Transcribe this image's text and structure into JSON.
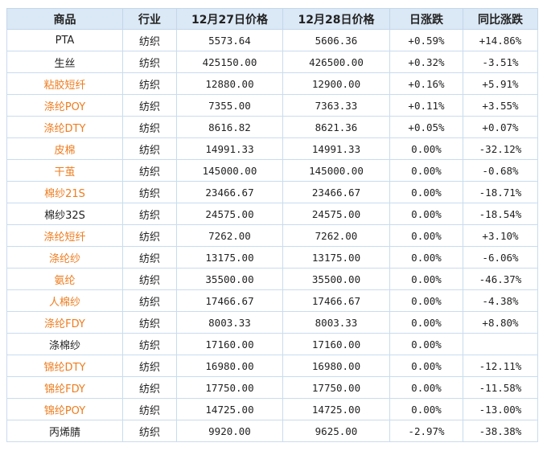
{
  "headers": [
    "商品",
    "行业",
    "12月27日价格",
    "12月28日价格",
    "日涨跌",
    "同比涨跌"
  ],
  "rows": [
    {
      "name": "PTA",
      "link": false,
      "industry": "纺织",
      "p1": "5573.64",
      "p2": "5606.36",
      "day": "+0.59%",
      "dayDir": "up",
      "yoy": "+14.86%",
      "yoyDir": "up"
    },
    {
      "name": "生丝",
      "link": false,
      "industry": "纺织",
      "p1": "425150.00",
      "p2": "426500.00",
      "day": "+0.32%",
      "dayDir": "up",
      "yoy": "-3.51%",
      "yoyDir": "down"
    },
    {
      "name": "粘胶短纤",
      "link": true,
      "industry": "纺织",
      "p1": "12880.00",
      "p2": "12900.00",
      "day": "+0.16%",
      "dayDir": "up",
      "yoy": "+5.91%",
      "yoyDir": "up"
    },
    {
      "name": "涤纶POY",
      "link": true,
      "industry": "纺织",
      "p1": "7355.00",
      "p2": "7363.33",
      "day": "+0.11%",
      "dayDir": "up",
      "yoy": "+3.55%",
      "yoyDir": "up"
    },
    {
      "name": "涤纶DTY",
      "link": true,
      "industry": "纺织",
      "p1": "8616.82",
      "p2": "8621.36",
      "day": "+0.05%",
      "dayDir": "up",
      "yoy": "+0.07%",
      "yoyDir": "up"
    },
    {
      "name": "皮棉",
      "link": true,
      "industry": "纺织",
      "p1": "14991.33",
      "p2": "14991.33",
      "day": "0.00%",
      "dayDir": "flat",
      "yoy": "-32.12%",
      "yoyDir": "down"
    },
    {
      "name": "干茧",
      "link": true,
      "industry": "纺织",
      "p1": "145000.00",
      "p2": "145000.00",
      "day": "0.00%",
      "dayDir": "flat",
      "yoy": "-0.68%",
      "yoyDir": "down"
    },
    {
      "name": "棉纱21S",
      "link": true,
      "industry": "纺织",
      "p1": "23466.67",
      "p2": "23466.67",
      "day": "0.00%",
      "dayDir": "flat",
      "yoy": "-18.71%",
      "yoyDir": "down"
    },
    {
      "name": "棉纱32S",
      "link": false,
      "industry": "纺织",
      "p1": "24575.00",
      "p2": "24575.00",
      "day": "0.00%",
      "dayDir": "flat",
      "yoy": "-18.54%",
      "yoyDir": "down"
    },
    {
      "name": "涤纶短纤",
      "link": true,
      "industry": "纺织",
      "p1": "7262.00",
      "p2": "7262.00",
      "day": "0.00%",
      "dayDir": "flat",
      "yoy": "+3.10%",
      "yoyDir": "up"
    },
    {
      "name": "涤纶纱",
      "link": true,
      "industry": "纺织",
      "p1": "13175.00",
      "p2": "13175.00",
      "day": "0.00%",
      "dayDir": "flat",
      "yoy": "-6.06%",
      "yoyDir": "down"
    },
    {
      "name": "氨纶",
      "link": true,
      "industry": "纺织",
      "p1": "35500.00",
      "p2": "35500.00",
      "day": "0.00%",
      "dayDir": "flat",
      "yoy": "-46.37%",
      "yoyDir": "down"
    },
    {
      "name": "人棉纱",
      "link": true,
      "industry": "纺织",
      "p1": "17466.67",
      "p2": "17466.67",
      "day": "0.00%",
      "dayDir": "flat",
      "yoy": "-4.38%",
      "yoyDir": "down"
    },
    {
      "name": "涤纶FDY",
      "link": true,
      "industry": "纺织",
      "p1": "8003.33",
      "p2": "8003.33",
      "day": "0.00%",
      "dayDir": "flat",
      "yoy": "+8.80%",
      "yoyDir": "up"
    },
    {
      "name": "涤棉纱",
      "link": false,
      "industry": "纺织",
      "p1": "17160.00",
      "p2": "17160.00",
      "day": "0.00%",
      "dayDir": "flat",
      "yoy": "",
      "yoyDir": "flat"
    },
    {
      "name": "锦纶DTY",
      "link": true,
      "industry": "纺织",
      "p1": "16980.00",
      "p2": "16980.00",
      "day": "0.00%",
      "dayDir": "flat",
      "yoy": "-12.11%",
      "yoyDir": "down"
    },
    {
      "name": "锦纶FDY",
      "link": true,
      "industry": "纺织",
      "p1": "17750.00",
      "p2": "17750.00",
      "day": "0.00%",
      "dayDir": "flat",
      "yoy": "-11.58%",
      "yoyDir": "down"
    },
    {
      "name": "锦纶POY",
      "link": true,
      "industry": "纺织",
      "p1": "14725.00",
      "p2": "14725.00",
      "day": "0.00%",
      "dayDir": "flat",
      "yoy": "-13.00%",
      "yoyDir": "down"
    },
    {
      "name": "丙烯腈",
      "link": false,
      "industry": "纺织",
      "p1": "9920.00",
      "p2": "9625.00",
      "day": "-2.97%",
      "dayDir": "down",
      "yoy": "-38.38%",
      "yoyDir": "down"
    }
  ],
  "colors": {
    "header_bg": "#dbe8f5",
    "link": "#ee7c1e",
    "up": "#e8301e",
    "down": "#2d8a2e",
    "border": "#c9dcee"
  }
}
